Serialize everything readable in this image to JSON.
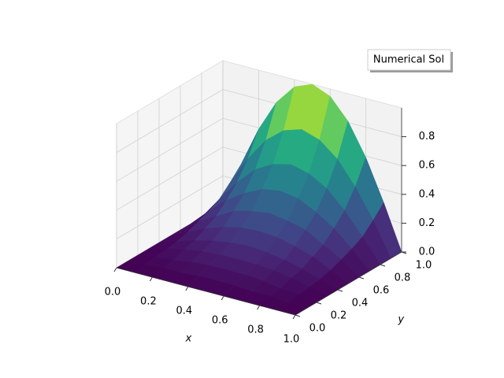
{
  "chart_data": {
    "type": "surface",
    "name": "Numerical Sol",
    "colormap": "viridis",
    "xlabel": "x",
    "ylabel": "y",
    "x": [
      0,
      0.1,
      0.2,
      0.3,
      0.4,
      0.5,
      0.6,
      0.7,
      0.8,
      0.9,
      1
    ],
    "y": [
      0,
      0.1,
      0.2,
      0.3,
      0.4,
      0.5,
      0.6,
      0.7,
      0.8,
      0.9,
      1
    ],
    "z": [
      [
        0,
        0,
        0,
        0,
        0,
        0,
        0,
        0,
        0,
        0,
        0
      ],
      [
        0,
        0.01,
        0.02,
        0.02,
        0.03,
        0.03,
        0.03,
        0.02,
        0.02,
        0.01,
        0
      ],
      [
        0,
        0.02,
        0.03,
        0.05,
        0.06,
        0.06,
        0.06,
        0.05,
        0.03,
        0.02,
        0
      ],
      [
        0,
        0.03,
        0.06,
        0.08,
        0.09,
        0.09,
        0.09,
        0.08,
        0.06,
        0.03,
        0
      ],
      [
        0,
        0.04,
        0.08,
        0.11,
        0.13,
        0.14,
        0.13,
        0.11,
        0.08,
        0.04,
        0
      ],
      [
        0,
        0.06,
        0.12,
        0.16,
        0.19,
        0.2,
        0.19,
        0.16,
        0.12,
        0.06,
        0
      ],
      [
        0,
        0.09,
        0.16,
        0.23,
        0.26,
        0.28,
        0.26,
        0.23,
        0.16,
        0.09,
        0
      ],
      [
        0,
        0.12,
        0.23,
        0.31,
        0.37,
        0.39,
        0.37,
        0.31,
        0.23,
        0.12,
        0
      ],
      [
        0,
        0.16,
        0.31,
        0.43,
        0.5,
        0.53,
        0.5,
        0.43,
        0.31,
        0.16,
        0
      ],
      [
        0,
        0.23,
        0.43,
        0.59,
        0.69,
        0.73,
        0.69,
        0.59,
        0.43,
        0.23,
        0
      ],
      [
        0,
        0.31,
        0.59,
        0.81,
        0.95,
        1,
        0.95,
        0.81,
        0.59,
        0.31,
        0
      ]
    ],
    "xlim": [
      0,
      1
    ],
    "ylim": [
      0,
      1
    ],
    "zlim": [
      0,
      1
    ],
    "xticks": [
      {
        "value": 0,
        "label": "0.0"
      },
      0.2,
      0.4,
      0.6,
      0.8,
      {
        "value": 1,
        "label": "1.0"
      }
    ],
    "yticks": [
      {
        "value": 0,
        "label": "0.0"
      },
      0.2,
      0.4,
      0.6,
      0.8,
      {
        "value": 1,
        "label": "1.0"
      }
    ],
    "zticks": [
      {
        "value": 0,
        "label": "0.0"
      },
      0.2,
      0.4,
      0.6,
      0.8
    ],
    "grid": true
  }
}
